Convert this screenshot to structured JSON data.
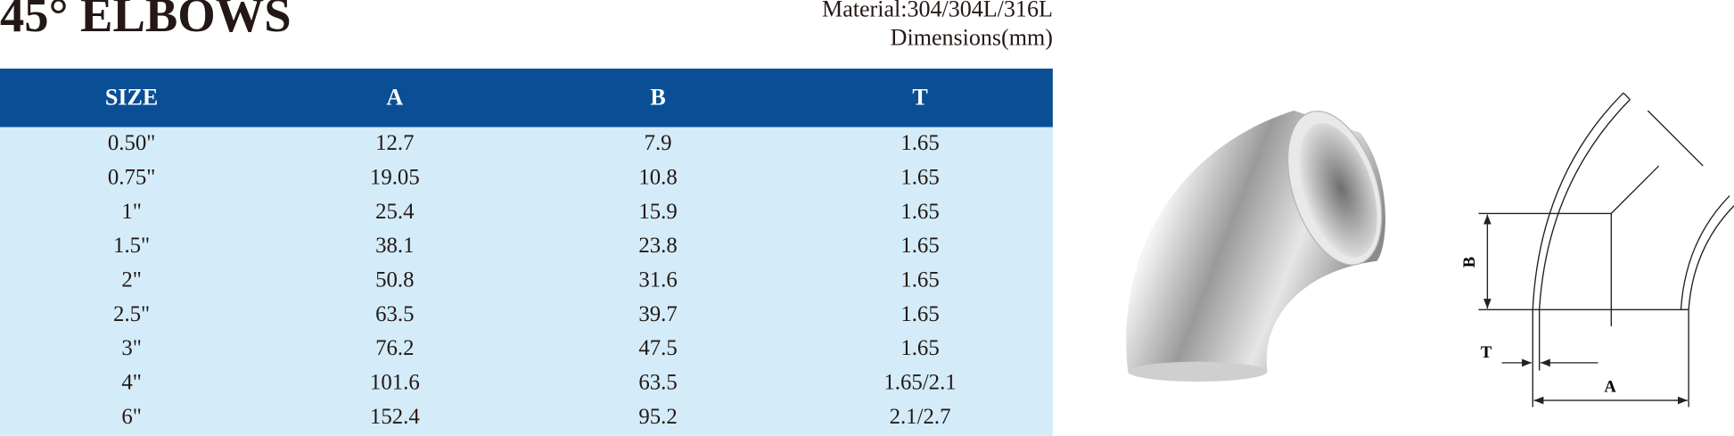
{
  "header": {
    "title": "45° ELBOWS",
    "material": "Material:304/304L/316L",
    "dimensions": "Dimensions(mm)"
  },
  "table": {
    "columns": [
      "SIZE",
      "A",
      "B",
      "T"
    ],
    "rows": [
      [
        "0.50\"",
        "12.7",
        "7.9",
        "1.65"
      ],
      [
        "0.75\"",
        "19.05",
        "10.8",
        "1.65"
      ],
      [
        "1\"",
        "25.4",
        "15.9",
        "1.65"
      ],
      [
        "1.5\"",
        "38.1",
        "23.8",
        "1.65"
      ],
      [
        "2\"",
        "50.8",
        "31.6",
        "1.65"
      ],
      [
        "2.5\"",
        "63.5",
        "39.7",
        "1.65"
      ],
      [
        "3\"",
        "76.2",
        "47.5",
        "1.65"
      ],
      [
        "4\"",
        "101.6",
        "63.5",
        "1.65/2.1"
      ],
      [
        "6\"",
        "152.4",
        "95.2",
        "2.1/2.7"
      ]
    ]
  },
  "diagram": {
    "label_b": "B",
    "label_t": "T",
    "label_a": "A"
  }
}
